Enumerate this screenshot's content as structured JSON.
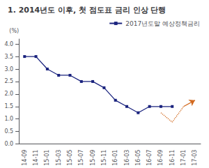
{
  "chart_data": {
    "type": "line",
    "title": "1. 2014년도 이후, 첫 점도표 금리 인상 단행",
    "ylabel": "(%)",
    "categories": [
      "14-09",
      "14-11",
      "15-01",
      "15-03",
      "15-05",
      "15-07",
      "15-09",
      "15-11",
      "16-01",
      "16-03",
      "16-05",
      "16-07",
      "16-09",
      "16-11",
      "17-01",
      "17-03"
    ],
    "series": [
      {
        "name": "2017년도말 예상정책금리",
        "color": "#1a237e",
        "marker": "square",
        "line_style": "solid",
        "values": [
          3.5,
          3.5,
          3.0,
          2.75,
          2.75,
          2.5,
          2.5,
          2.25,
          1.75,
          1.5,
          1.25,
          1.5,
          1.5,
          1.5,
          null,
          null
        ]
      },
      {
        "color": "#d2691e",
        "marker": "arrow",
        "line_style": "dotted",
        "values": [
          null,
          null,
          null,
          null,
          null,
          null,
          null,
          null,
          null,
          null,
          null,
          null,
          1.25,
          0.875,
          1.5,
          1.75
        ]
      }
    ],
    "ylim": [
      0,
      4.2
    ],
    "yticks": [
      {
        "value": 0,
        "label": "0.0"
      },
      0.5,
      {
        "value": 1.0,
        "label": "1.0"
      },
      1.5,
      {
        "value": 2.0,
        "label": "2.0"
      },
      2.5,
      {
        "value": 3.0,
        "label": "3.0"
      },
      3.5,
      {
        "value": 4.0,
        "label": "4.0"
      }
    ],
    "grid": false,
    "legend": "upper right"
  }
}
